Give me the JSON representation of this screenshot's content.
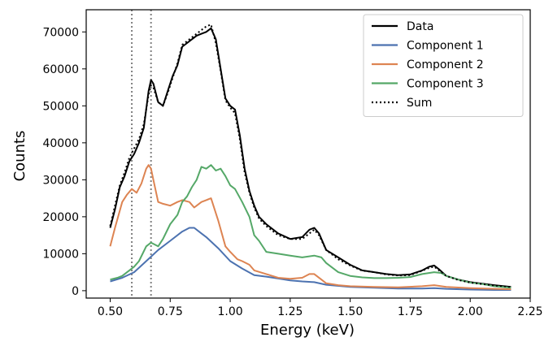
{
  "chart_data": {
    "type": "line",
    "title": "",
    "xlabel": "Energy (keV)",
    "ylabel": "Counts",
    "xlim": [
      0.4,
      2.25
    ],
    "ylim": [
      -2000,
      76000
    ],
    "xticks": [
      0.5,
      0.75,
      1.0,
      1.25,
      1.5,
      1.75,
      2.0,
      2.25
    ],
    "xtick_labels": [
      "0.50",
      "0.75",
      "1.00",
      "1.25",
      "1.50",
      "1.75",
      "2.00",
      "2.25"
    ],
    "yticks": [
      0,
      10000,
      20000,
      30000,
      40000,
      50000,
      60000,
      70000
    ],
    "ytick_labels": [
      "0",
      "10000",
      "20000",
      "30000",
      "40000",
      "50000",
      "60000",
      "70000"
    ],
    "grid": false,
    "legend_position": "top-right",
    "vlines": [
      {
        "x": 0.59,
        "color": "#808080",
        "style": "dotted"
      },
      {
        "x": 0.67,
        "color": "#808080",
        "style": "dotted"
      }
    ],
    "series": [
      {
        "name": "Data",
        "color": "#000000",
        "style": "solid",
        "x": [
          0.5,
          0.52,
          0.54,
          0.56,
          0.58,
          0.6,
          0.62,
          0.64,
          0.66,
          0.67,
          0.68,
          0.7,
          0.72,
          0.74,
          0.76,
          0.78,
          0.8,
          0.82,
          0.84,
          0.86,
          0.88,
          0.9,
          0.92,
          0.94,
          0.96,
          0.98,
          1.0,
          1.02,
          1.04,
          1.06,
          1.08,
          1.1,
          1.12,
          1.15,
          1.2,
          1.25,
          1.3,
          1.33,
          1.35,
          1.37,
          1.4,
          1.45,
          1.5,
          1.55,
          1.6,
          1.65,
          1.7,
          1.75,
          1.8,
          1.83,
          1.85,
          1.87,
          1.9,
          1.95,
          2.0,
          2.05,
          2.1,
          2.17
        ],
        "values": [
          17000,
          22000,
          28000,
          31000,
          35000,
          37000,
          40000,
          44000,
          54000,
          57000,
          56000,
          51000,
          50000,
          54000,
          58000,
          61000,
          66000,
          67000,
          68000,
          69000,
          69500,
          70000,
          71000,
          68000,
          60000,
          52000,
          50000,
          49000,
          42000,
          33000,
          27000,
          23000,
          20000,
          18000,
          15500,
          14000,
          14500,
          16500,
          17000,
          15500,
          11000,
          9000,
          7000,
          5500,
          5000,
          4500,
          4200,
          4400,
          5500,
          6500,
          6800,
          5800,
          4000,
          3000,
          2300,
          1900,
          1500,
          1000
        ]
      },
      {
        "name": "Component 1",
        "color": "#4c72b0",
        "style": "solid",
        "x": [
          0.5,
          0.55,
          0.6,
          0.65,
          0.7,
          0.75,
          0.8,
          0.83,
          0.85,
          0.88,
          0.9,
          0.95,
          1.0,
          1.05,
          1.1,
          1.15,
          1.2,
          1.25,
          1.3,
          1.35,
          1.4,
          1.5,
          1.6,
          1.7,
          1.8,
          1.85,
          1.9,
          2.0,
          2.1,
          2.17
        ],
        "values": [
          2500,
          3500,
          5000,
          8000,
          11000,
          13500,
          16000,
          17000,
          17000,
          15500,
          14500,
          11500,
          8000,
          6000,
          4200,
          3800,
          3300,
          2800,
          2500,
          2300,
          1600,
          1000,
          800,
          600,
          600,
          700,
          500,
          300,
          200,
          200
        ]
      },
      {
        "name": "Component 2",
        "color": "#dd8452",
        "style": "solid",
        "x": [
          0.5,
          0.52,
          0.55,
          0.57,
          0.59,
          0.61,
          0.63,
          0.65,
          0.66,
          0.67,
          0.68,
          0.7,
          0.72,
          0.75,
          0.78,
          0.8,
          0.83,
          0.85,
          0.88,
          0.9,
          0.92,
          0.95,
          0.98,
          1.0,
          1.03,
          1.05,
          1.08,
          1.1,
          1.15,
          1.2,
          1.25,
          1.3,
          1.33,
          1.35,
          1.38,
          1.4,
          1.45,
          1.5,
          1.6,
          1.7,
          1.8,
          1.85,
          1.9,
          2.0,
          2.1,
          2.17
        ],
        "values": [
          12000,
          17000,
          24000,
          26000,
          27500,
          26500,
          29000,
          33000,
          34000,
          33000,
          30000,
          24000,
          23500,
          23000,
          24000,
          24500,
          24000,
          22500,
          24000,
          24500,
          25000,
          19000,
          12000,
          10500,
          8500,
          8000,
          7000,
          5500,
          4500,
          3500,
          3200,
          3500,
          4500,
          4500,
          3000,
          2000,
          1500,
          1200,
          1000,
          900,
          1200,
          1500,
          1000,
          700,
          500,
          400
        ]
      },
      {
        "name": "Component 3",
        "color": "#55a868",
        "style": "solid",
        "x": [
          0.5,
          0.53,
          0.55,
          0.58,
          0.6,
          0.62,
          0.65,
          0.67,
          0.7,
          0.72,
          0.75,
          0.78,
          0.8,
          0.82,
          0.84,
          0.86,
          0.88,
          0.9,
          0.92,
          0.94,
          0.96,
          0.98,
          1.0,
          1.02,
          1.05,
          1.08,
          1.1,
          1.12,
          1.15,
          1.2,
          1.25,
          1.3,
          1.35,
          1.38,
          1.4,
          1.45,
          1.5,
          1.55,
          1.6,
          1.65,
          1.7,
          1.75,
          1.8,
          1.85,
          1.88,
          1.9,
          1.95,
          2.0,
          2.05,
          2.1,
          2.17
        ],
        "values": [
          3000,
          3500,
          4000,
          5500,
          6500,
          8000,
          12000,
          13000,
          12000,
          14000,
          18000,
          20500,
          24000,
          25500,
          28000,
          30000,
          33500,
          33000,
          34000,
          32500,
          33000,
          31000,
          28500,
          27500,
          24000,
          20000,
          15000,
          13500,
          10500,
          10000,
          9500,
          9000,
          9500,
          9000,
          7500,
          5000,
          4000,
          3600,
          3400,
          3400,
          3500,
          3700,
          4500,
          5000,
          4800,
          4000,
          3000,
          2200,
          1800,
          1200,
          800
        ]
      },
      {
        "name": "Sum",
        "color": "#000000",
        "style": "dotted",
        "x": [
          0.5,
          0.52,
          0.54,
          0.56,
          0.58,
          0.6,
          0.62,
          0.64,
          0.66,
          0.67,
          0.68,
          0.7,
          0.72,
          0.74,
          0.76,
          0.78,
          0.8,
          0.82,
          0.84,
          0.86,
          0.88,
          0.9,
          0.92,
          0.94,
          0.96,
          0.98,
          1.0,
          1.02,
          1.04,
          1.06,
          1.08,
          1.1,
          1.12,
          1.15,
          1.2,
          1.25,
          1.3,
          1.33,
          1.35,
          1.37,
          1.4,
          1.45,
          1.5,
          1.55,
          1.6,
          1.65,
          1.7,
          1.75,
          1.8,
          1.83,
          1.85,
          1.87,
          1.9,
          1.95,
          2.0,
          2.05,
          2.1,
          2.17
        ],
        "values": [
          17500,
          23000,
          28500,
          32000,
          36000,
          38500,
          41000,
          45000,
          53000,
          55500,
          55000,
          51000,
          50000,
          53500,
          57500,
          61500,
          66500,
          67500,
          68500,
          69500,
          70500,
          71500,
          72000,
          67000,
          59500,
          51500,
          49500,
          48000,
          41000,
          32000,
          26500,
          22500,
          19500,
          17500,
          15000,
          14000,
          14000,
          15500,
          16500,
          15000,
          11000,
          8500,
          6800,
          5400,
          5000,
          4400,
          4100,
          4200,
          5400,
          6200,
          6500,
          5500,
          4000,
          2900,
          2200,
          1800,
          1400,
          1000
        ]
      }
    ]
  }
}
